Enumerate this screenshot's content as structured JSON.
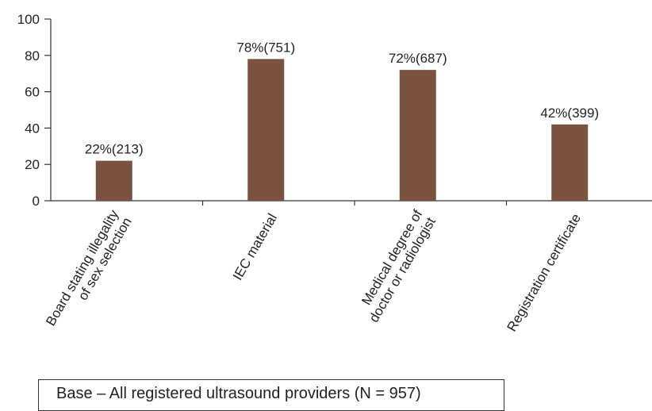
{
  "chart_data": {
    "type": "bar",
    "categories": [
      [
        "Board stating illegality",
        "of sex selection"
      ],
      [
        "IEC material"
      ],
      [
        "Medical degree of",
        "doctor or radiologist"
      ],
      [
        "Registration certificate"
      ]
    ],
    "values": [
      22,
      78,
      72,
      42
    ],
    "data_labels": [
      "22%(213)",
      "78%(751)",
      "72%(687)",
      "42%(399)"
    ],
    "ylim": [
      0,
      100
    ],
    "yticks": [
      0,
      20,
      40,
      60,
      80,
      100
    ],
    "bar_color": "#7a5240",
    "grid": false
  },
  "note": "Base – All registered ultrasound providers (N = 957)"
}
